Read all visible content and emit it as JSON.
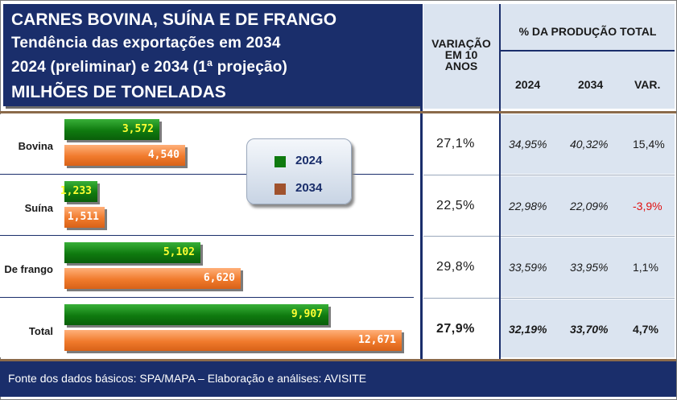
{
  "title": {
    "line1": "CARNES BOVINA, SUÍNA E DE FRANGO",
    "line2": "Tendência das exportações em 2034",
    "line3": "2024 (preliminar) e 2034 (1ª projeção)",
    "line4": "MILHÕES DE TONELADAS"
  },
  "headers": {
    "variation": "VARIAÇÃO\nEM 10\nANOS",
    "production": "% DA PRODUÇÃO TOTAL",
    "col_2024": "2024",
    "col_2034": "2034",
    "col_var": "VAR."
  },
  "chart_data": {
    "type": "bar",
    "orientation": "horizontal",
    "title": "Tendência das exportações em 2034",
    "unit": "MILHÕES DE TONELADAS",
    "categories": [
      "Bovina",
      "Suína",
      "De frango",
      "Total"
    ],
    "series": [
      {
        "name": "2024",
        "values": [
          3.572,
          1.233,
          5.102,
          9.907
        ],
        "labels": [
          "3,572",
          "1,233",
          "5,102",
          "9,907"
        ],
        "color": "#0f7a0f"
      },
      {
        "name": "2034",
        "values": [
          4.54,
          1.511,
          6.62,
          12.671
        ],
        "labels": [
          "4,540",
          "1,511",
          "6,620",
          "12,671"
        ],
        "color": "#f07a2c"
      }
    ],
    "xlim": [
      0,
      13
    ],
    "legend": "center"
  },
  "table": {
    "rows": [
      {
        "variation": "27,1%",
        "p2024": "34,95%",
        "p2034": "40,32%",
        "var": "15,4%",
        "negative": false,
        "bold": false
      },
      {
        "variation": "22,5%",
        "p2024": "22,98%",
        "p2034": "22,09%",
        "var": "-3,9%",
        "negative": true,
        "bold": false
      },
      {
        "variation": "29,8%",
        "p2024": "33,59%",
        "p2034": "33,95%",
        "var": "1,1%",
        "negative": false,
        "bold": false
      },
      {
        "variation": "27,9%",
        "p2024": "32,19%",
        "p2034": "33,70%",
        "var": "4,7%",
        "negative": false,
        "bold": true
      }
    ]
  },
  "footer": "Fonte dos dados básicos: SPA/MAPA – Elaboração e análises: AVISITE",
  "colors": {
    "navy": "#1a2e6b",
    "green": "#0f7a0f",
    "orange": "#f07a2c",
    "light_blue": "#dbe4f0",
    "negative": "#e01010"
  }
}
